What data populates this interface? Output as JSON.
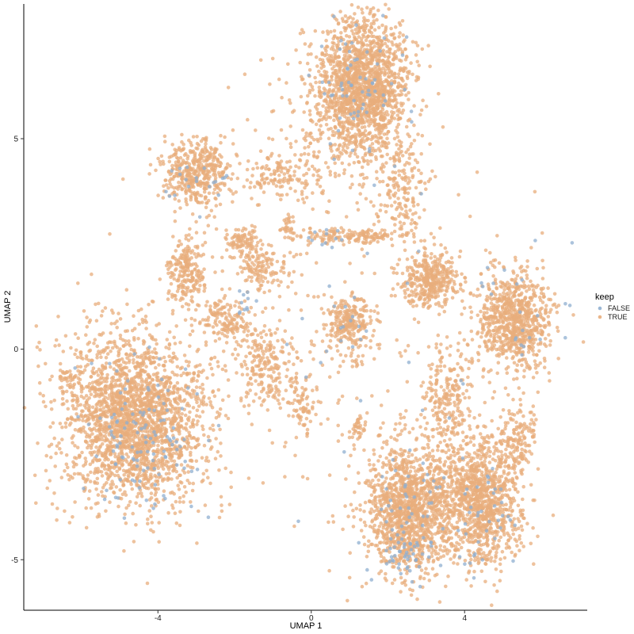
{
  "chart_data": {
    "type": "scatter",
    "xlabel": "UMAP 1",
    "ylabel": "UMAP 2",
    "xlim": [
      -7.5,
      7.2
    ],
    "ylim": [
      -6.2,
      8.2
    ],
    "x_ticks": [
      -4,
      0,
      4
    ],
    "y_ticks": [
      -5,
      0,
      5
    ],
    "x_tick_labels": [
      "-4",
      "0",
      "4"
    ],
    "y_tick_labels": [
      "-5",
      "0",
      "5"
    ],
    "grid": false,
    "legend": {
      "title": "keep",
      "placement": "right",
      "entries": [
        {
          "label": "FALSE",
          "color": "#8fafd0"
        },
        {
          "label": "TRUE",
          "color": "#e8ad7c"
        }
      ]
    },
    "point_opacity": 0.75,
    "series": [
      {
        "name": "TRUE",
        "color": "#e8ad7c",
        "clusters": [
          {
            "cx": -4.6,
            "cy": -1.7,
            "sx": 0.95,
            "sy": 1.0,
            "n": 2300
          },
          {
            "cx": -6.3,
            "cy": -0.65,
            "sx": 0.15,
            "sy": 0.08,
            "n": 30
          },
          {
            "cx": 1.4,
            "cy": 6.3,
            "sx": 0.6,
            "sy": 0.8,
            "n": 1500
          },
          {
            "cx": 0.6,
            "cy": 5.2,
            "sx": 0.9,
            "sy": 0.9,
            "n": 300
          },
          {
            "cx": -3.0,
            "cy": 4.2,
            "sx": 0.45,
            "sy": 0.4,
            "n": 450
          },
          {
            "cx": -0.8,
            "cy": 4.1,
            "sx": 0.45,
            "sy": 0.25,
            "n": 110
          },
          {
            "cx": 2.4,
            "cy": 3.7,
            "sx": 0.3,
            "sy": 0.6,
            "n": 160
          },
          {
            "cx": 1.1,
            "cy": 2.7,
            "sx": 0.65,
            "sy": 0.1,
            "n": 150
          },
          {
            "cx": -1.75,
            "cy": 2.55,
            "sx": 0.2,
            "sy": 0.15,
            "n": 90
          },
          {
            "cx": -0.6,
            "cy": 2.9,
            "sx": 0.1,
            "sy": 0.15,
            "n": 30
          },
          {
            "cx": -3.25,
            "cy": 1.8,
            "sx": 0.25,
            "sy": 0.45,
            "n": 220
          },
          {
            "cx": -1.3,
            "cy": 1.9,
            "sx": 0.35,
            "sy": 0.25,
            "n": 130
          },
          {
            "cx": -2.2,
            "cy": 0.7,
            "sx": 0.35,
            "sy": 0.3,
            "n": 150
          },
          {
            "cx": -1.2,
            "cy": -0.4,
            "sx": 0.35,
            "sy": 0.5,
            "n": 200
          },
          {
            "cx": -0.25,
            "cy": -1.3,
            "sx": 0.18,
            "sy": 0.35,
            "n": 80
          },
          {
            "cx": 1.0,
            "cy": 0.6,
            "sx": 0.3,
            "sy": 0.35,
            "n": 260
          },
          {
            "cx": 3.1,
            "cy": 1.65,
            "sx": 0.35,
            "sy": 0.35,
            "n": 380
          },
          {
            "cx": 5.3,
            "cy": 0.7,
            "sx": 0.5,
            "sy": 0.6,
            "n": 800
          },
          {
            "cx": 3.55,
            "cy": -1.2,
            "sx": 0.35,
            "sy": 0.7,
            "n": 230
          },
          {
            "cx": 2.55,
            "cy": -3.8,
            "sx": 0.55,
            "sy": 0.75,
            "n": 1300
          },
          {
            "cx": 4.4,
            "cy": -3.6,
            "sx": 0.55,
            "sy": 0.75,
            "n": 1100
          },
          {
            "cx": 5.4,
            "cy": -2.1,
            "sx": 0.25,
            "sy": 0.45,
            "n": 140
          },
          {
            "cx": 1.2,
            "cy": -1.85,
            "sx": 0.1,
            "sy": 0.2,
            "n": 35
          },
          {
            "cx": 0.5,
            "cy": 0.0,
            "sx": 2.5,
            "sy": 2.3,
            "n": 240
          }
        ]
      },
      {
        "name": "FALSE",
        "color": "#8fafd0",
        "clusters": [
          {
            "cx": -4.3,
            "cy": -2.1,
            "sx": 0.7,
            "sy": 0.9,
            "n": 120
          },
          {
            "cx": 1.4,
            "cy": 6.3,
            "sx": 0.6,
            "sy": 0.8,
            "n": 70
          },
          {
            "cx": -3.0,
            "cy": 4.0,
            "sx": 0.4,
            "sy": 0.35,
            "n": 20
          },
          {
            "cx": 1.0,
            "cy": 0.6,
            "sx": 0.3,
            "sy": 0.35,
            "n": 12
          },
          {
            "cx": 2.6,
            "cy": -4.9,
            "sx": 0.35,
            "sy": 0.3,
            "n": 40
          },
          {
            "cx": 2.5,
            "cy": -3.8,
            "sx": 0.5,
            "sy": 0.7,
            "n": 45
          },
          {
            "cx": 4.4,
            "cy": -3.8,
            "sx": 0.5,
            "sy": 0.7,
            "n": 40
          },
          {
            "cx": 5.3,
            "cy": 0.7,
            "sx": 0.5,
            "sy": 0.6,
            "n": 20
          },
          {
            "cx": -1.8,
            "cy": 1.0,
            "sx": 0.2,
            "sy": 0.2,
            "n": 10
          },
          {
            "cx": 0.2,
            "cy": 2.7,
            "sx": 0.3,
            "sy": 0.1,
            "n": 10
          },
          {
            "cx": 0.5,
            "cy": 0.0,
            "sx": 2.2,
            "sy": 2.0,
            "n": 25
          }
        ]
      }
    ]
  }
}
